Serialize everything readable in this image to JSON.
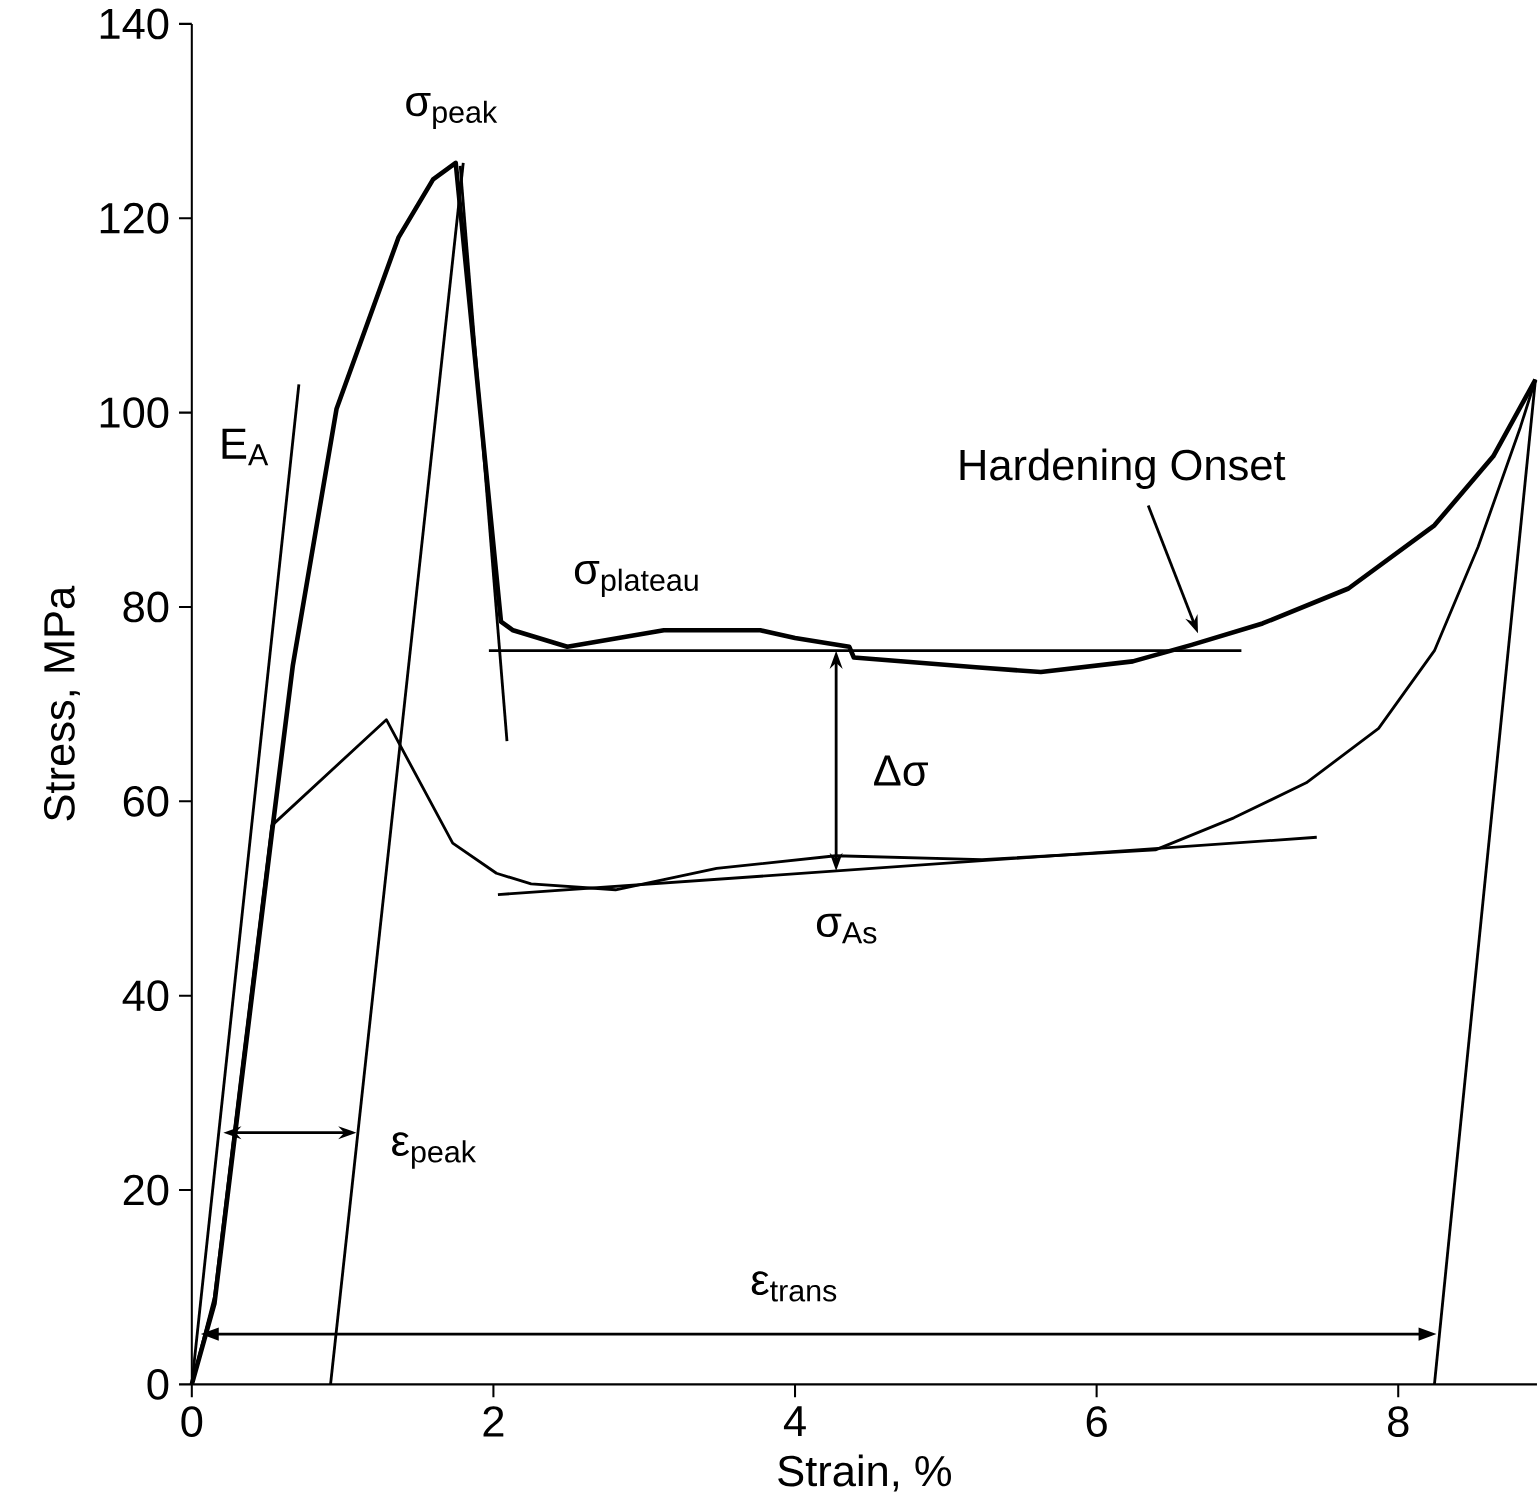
{
  "chart_data": {
    "type": "line",
    "xlabel": "Strain, %",
    "ylabel": "Stress, MPa",
    "xlim": [
      0,
      8.92
    ],
    "ylim": [
      0,
      140
    ],
    "xticks": [
      0,
      2,
      4,
      6,
      8
    ],
    "yticks": [
      0,
      20,
      40,
      60,
      80,
      100,
      120,
      140
    ],
    "grid": false,
    "marker": "none",
    "line_style": "solid",
    "series": [
      {
        "color": "#000000",
        "x": [
          0,
          0.15,
          0.32,
          0.53,
          0.67,
          0.96,
          1.37,
          1.6,
          1.75,
          2.05,
          2.13,
          2.49,
          3.13,
          3.77,
          4.0,
          4.36,
          4.39,
          5.2,
          5.63,
          6.24,
          6.63,
          7.1,
          7.67,
          8.24,
          8.63,
          8.91
        ],
        "values": [
          0,
          8.3,
          30,
          56.6,
          74,
          100.4,
          118,
          124,
          125.7,
          78.5,
          77.6,
          75.9,
          77.6,
          77.6,
          76.8,
          75.9,
          74.8,
          73.8,
          73.3,
          74.4,
          76.1,
          78.3,
          81.9,
          88.4,
          95.5,
          103.4
        ]
      },
      {
        "color": "#000000",
        "x": [
          0,
          0.15,
          0.32,
          0.53,
          1.29,
          1.73,
          2.02,
          2.25,
          2.81,
          3.48,
          4.27,
          5.24,
          6.39,
          6.91,
          7.39,
          7.87,
          8.24,
          8.53,
          8.81,
          8.91
        ],
        "values": [
          0,
          9,
          31,
          57.5,
          68.4,
          55.7,
          52.6,
          51.5,
          50.9,
          53.1,
          54.4,
          54,
          55,
          58.3,
          61.9,
          67.5,
          75.5,
          86.2,
          98.5,
          103.4
        ]
      },
      {
        "color": "#000000",
        "x": [
          0,
          0.71
        ],
        "values": [
          0,
          102.9
        ]
      },
      {
        "color": "#000000",
        "x": [
          0.92,
          1.8
        ],
        "values": [
          0,
          125.7
        ]
      },
      {
        "color": "#000000",
        "x": [
          1.78,
          2.09
        ],
        "values": [
          125.4,
          66.2
        ]
      },
      {
        "color": "#000000",
        "x": [
          1.97,
          6.96
        ],
        "values": [
          75.5,
          75.5
        ]
      },
      {
        "color": "#000000",
        "x": [
          2.03,
          7.46
        ],
        "values": [
          50.4,
          56.3
        ]
      },
      {
        "color": "#000000",
        "x": [
          8.24,
          8.91
        ],
        "values": [
          0,
          103.4
        ]
      }
    ],
    "annotations": [
      "σ$_{peak}$",
      "E$_{A}$",
      "σ$_{plateau}$",
      "Hardening Onset",
      "Δσ",
      "σ$_{As}$",
      "ε$_{peak}$",
      "ε$_{trans}$"
    ]
  }
}
